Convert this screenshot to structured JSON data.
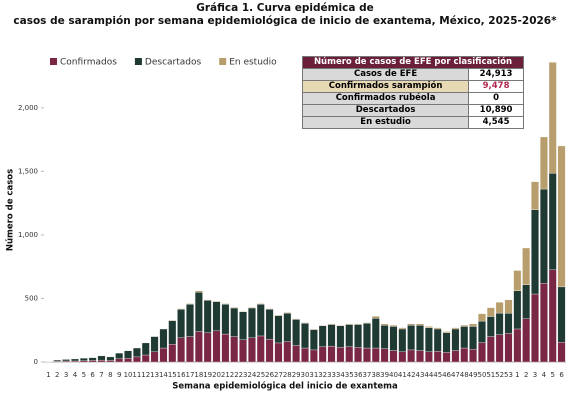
{
  "chart_data": {
    "type": "stacked_bar",
    "title": [
      "Gráfica 1. Curva epidémica de",
      "casos de sarampión por semana epidemiológica de inicio de exantema, México, 2025-2026*"
    ],
    "x_label": "Semana epidemiológica del inicio de exantema",
    "y_label": "Número de casos",
    "categories": [
      "1",
      "2",
      "3",
      "4",
      "5",
      "6",
      "7",
      "8",
      "9",
      "10",
      "11",
      "12",
      "13",
      "14",
      "15",
      "16",
      "17",
      "18",
      "19",
      "20",
      "21",
      "22",
      "23",
      "24",
      "25",
      "26",
      "27",
      "28",
      "29",
      "30",
      "31",
      "32",
      "33",
      "34",
      "35",
      "36",
      "37",
      "38",
      "39",
      "40",
      "41",
      "42",
      "43",
      "44",
      "45",
      "46",
      "47",
      "48",
      "49",
      "50",
      "51",
      "52",
      "53",
      "1",
      "2",
      "3",
      "4",
      "5",
      "6"
    ],
    "series": [
      {
        "name": "Confirmados",
        "color": "#7a2645",
        "values": [
          1,
          5,
          8,
          8,
          10,
          12,
          15,
          12,
          25,
          30,
          40,
          55,
          80,
          110,
          140,
          190,
          200,
          240,
          230,
          245,
          220,
          200,
          175,
          190,
          205,
          180,
          150,
          160,
          130,
          110,
          95,
          120,
          125,
          115,
          120,
          115,
          110,
          110,
          105,
          90,
          80,
          95,
          90,
          80,
          85,
          75,
          90,
          110,
          100,
          152,
          200,
          215,
          225,
          260,
          340,
          535,
          620,
          725,
          155
        ]
      },
      {
        "name": "Descartados",
        "color": "#1f3a33",
        "values": [
          3,
          10,
          12,
          16,
          20,
          22,
          33,
          28,
          45,
          58,
          70,
          95,
          120,
          150,
          185,
          225,
          255,
          310,
          255,
          230,
          235,
          225,
          220,
          235,
          250,
          235,
          215,
          225,
          205,
          195,
          160,
          165,
          170,
          170,
          175,
          180,
          195,
          235,
          185,
          190,
          180,
          195,
          200,
          190,
          175,
          155,
          170,
          170,
          180,
          170,
          158,
          170,
          159,
          300,
          267,
          664,
          741,
          760,
          436
        ]
      },
      {
        "name": "En estudio",
        "color": "#b99e6d",
        "values": [
          0,
          0,
          0,
          0,
          0,
          0,
          0,
          0,
          0,
          0,
          0,
          0,
          0,
          2,
          5,
          5,
          5,
          10,
          5,
          5,
          5,
          5,
          5,
          5,
          5,
          5,
          5,
          5,
          5,
          5,
          5,
          5,
          5,
          5,
          5,
          5,
          5,
          15,
          10,
          10,
          10,
          10,
          10,
          10,
          10,
          10,
          10,
          10,
          20,
          58,
          70,
          85,
          105,
          160,
          290,
          220,
          410,
          873,
          1109
        ]
      }
    ],
    "ylim": [
      0,
      2400
    ],
    "yticks": [
      0,
      500,
      {
        "value": 1000,
        "label": "1,000"
      },
      {
        "value": 1500,
        "label": "1,500"
      },
      {
        "value": 2000,
        "label": "2,000"
      }
    ],
    "legend": "top-left"
  },
  "table": {
    "header": "Número de casos de EFE por clasificación",
    "rows": [
      [
        "Casos de EFE",
        "24,913"
      ],
      [
        "Confirmados sarampión",
        "9,478"
      ],
      [
        "Confirmados rubéola",
        "0"
      ],
      [
        "Descartados",
        "10,890"
      ],
      [
        "En estudio",
        "4,545"
      ]
    ]
  }
}
